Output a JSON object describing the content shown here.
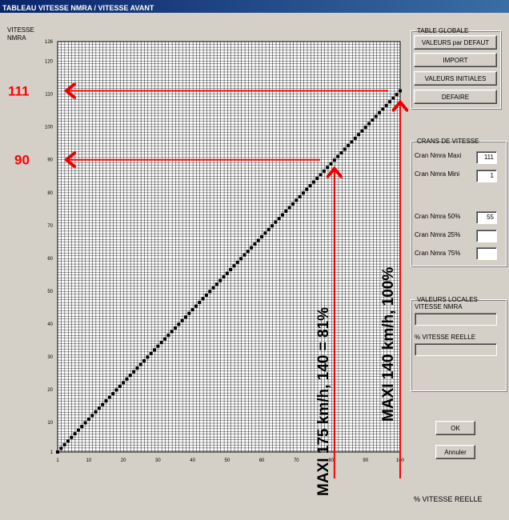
{
  "window": {
    "title": "TABLEAU VITESSE NMRA / VITESSE AVANT"
  },
  "chart_data": {
    "type": "scatter",
    "ylabel": "VITESSE\nNMRA",
    "xlabel": "% VITESSE REELLE",
    "xlim": [
      1,
      100
    ],
    "ylim": [
      1,
      126
    ],
    "x_ticks": [
      1,
      10,
      20,
      30,
      40,
      50,
      60,
      70,
      80,
      90,
      100
    ],
    "y_ticks": [
      1,
      10,
      20,
      30,
      40,
      50,
      60,
      70,
      80,
      90,
      100,
      110,
      120,
      126
    ],
    "series": [
      {
        "x_start": 1,
        "y_start": 1,
        "x_end": 100,
        "y_end": 111,
        "points": 100,
        "color": "#000000"
      }
    ],
    "annotations": {
      "label_111": "111",
      "label_90": "90",
      "level_111": 111,
      "level_90": 90,
      "x_81": 81,
      "x_100": 100,
      "text_81": "MAXI 175 km/h, 140 = 81%",
      "text_100": "MAXI 140 km/h, 100%",
      "color": "#ff0000"
    }
  },
  "table_globale": {
    "legend": "TABLE GLOBALE",
    "valeurs_defaut": "VALEURS par DEFAUT",
    "import": "IMPORT",
    "valeurs_initiales": "VALEURS INITIALES",
    "defaire": "DEFAIRE"
  },
  "crans": {
    "legend": "CRANS DE VITESSE",
    "maxi_label": "Cran Nmra Maxi",
    "maxi_value": "111",
    "mini_label": "Cran Nmra Mini",
    "mini_value": "1",
    "p50_label": "Cran Nmra 50%",
    "p50_value": "55",
    "p25_label": "Cran Nmra 25%",
    "p25_value": "",
    "p75_label": "Cran Nmra 75%",
    "p75_value": ""
  },
  "locales": {
    "legend": "VALEURS LOCALES",
    "vitesse_label": "VITESSE NMRA",
    "vitesse_value": "",
    "pct_label": "% VITESSE REELLE",
    "pct_value": ""
  },
  "buttons": {
    "ok": "OK",
    "annuler": "Annuler"
  }
}
